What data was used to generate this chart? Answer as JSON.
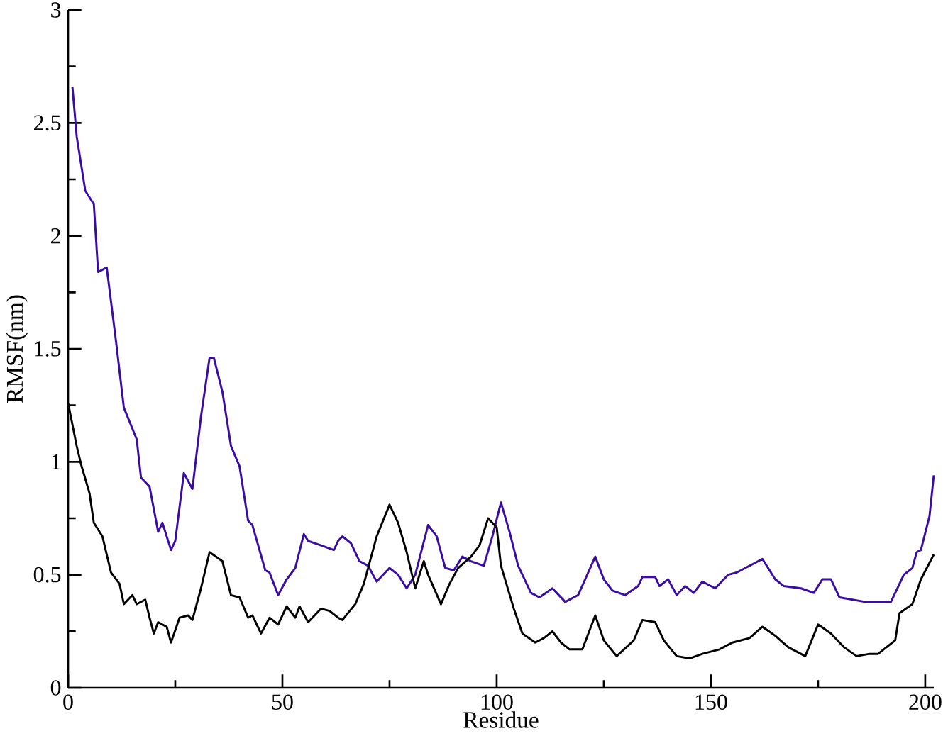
{
  "chart_data": {
    "type": "line",
    "xlabel": "Residue",
    "ylabel": "RMSF(nm)",
    "xlim": [
      0,
      202
    ],
    "ylim": [
      0,
      3
    ],
    "xticks": [
      0,
      {
        "value": 25,
        "label": null
      },
      50,
      {
        "value": 75,
        "label": null
      },
      100,
      {
        "value": 125,
        "label": null
      },
      150,
      {
        "value": 175,
        "label": null
      },
      200
    ],
    "yticks": [
      0,
      {
        "value": 0.25,
        "label": null
      },
      0.5,
      {
        "value": 0.75,
        "label": null
      },
      1,
      {
        "value": 1.25,
        "label": null
      },
      1.5,
      {
        "value": 1.75,
        "label": null
      },
      2,
      {
        "value": 2.25,
        "label": null
      },
      2.5,
      {
        "value": 2.75,
        "label": null
      },
      3
    ],
    "grid": false,
    "marker": "none",
    "line_style": "solid",
    "series": [
      {
        "color": "#3a0ca3",
        "x": [
          1,
          2,
          4,
          6,
          7,
          9,
          11,
          13,
          16,
          17,
          19,
          21,
          22,
          24,
          25,
          27,
          29,
          31,
          33,
          34,
          36,
          38,
          40,
          42,
          43,
          46,
          47,
          49,
          51,
          53,
          55,
          56,
          59,
          62,
          63,
          64,
          66,
          68,
          70,
          72,
          75,
          77,
          79,
          81,
          84,
          86,
          88,
          90,
          92,
          94,
          97,
          99,
          101,
          103,
          105,
          108,
          110,
          113,
          116,
          119,
          123,
          125,
          127,
          130,
          133,
          134,
          137,
          138,
          140,
          142,
          144,
          146,
          148,
          151,
          154,
          156,
          160,
          162,
          165,
          167,
          171,
          174,
          176,
          178,
          180,
          183,
          186,
          189,
          192,
          195,
          197,
          198,
          199,
          201,
          202
        ],
        "values": [
          2.66,
          2.44,
          2.2,
          2.14,
          1.84,
          1.86,
          1.56,
          1.24,
          1.1,
          0.93,
          0.89,
          0.69,
          0.73,
          0.61,
          0.65,
          0.95,
          0.88,
          1.2,
          1.46,
          1.46,
          1.31,
          1.07,
          0.98,
          0.74,
          0.72,
          0.52,
          0.51,
          0.41,
          0.48,
          0.53,
          0.68,
          0.65,
          0.63,
          0.61,
          0.65,
          0.67,
          0.64,
          0.56,
          0.54,
          0.47,
          0.53,
          0.5,
          0.44,
          0.5,
          0.72,
          0.67,
          0.53,
          0.52,
          0.58,
          0.56,
          0.54,
          0.67,
          0.82,
          0.69,
          0.54,
          0.42,
          0.4,
          0.44,
          0.38,
          0.41,
          0.58,
          0.48,
          0.43,
          0.41,
          0.45,
          0.49,
          0.49,
          0.45,
          0.48,
          0.41,
          0.45,
          0.42,
          0.47,
          0.44,
          0.5,
          0.51,
          0.55,
          0.57,
          0.48,
          0.45,
          0.44,
          0.42,
          0.48,
          0.48,
          0.4,
          0.39,
          0.38,
          0.38,
          0.38,
          0.5,
          0.53,
          0.6,
          0.61,
          0.76,
          0.94
        ]
      },
      {
        "color": "#000000",
        "x": [
          0,
          2,
          3,
          5,
          6,
          8,
          10,
          12,
          13,
          15,
          16,
          18,
          19,
          20,
          21,
          23,
          24,
          26,
          28,
          29,
          31,
          33,
          36,
          38,
          40,
          42,
          43,
          45,
          47,
          49,
          51,
          53,
          54,
          56,
          59,
          61,
          63,
          64,
          67,
          69,
          71,
          72,
          75,
          77,
          79,
          81,
          83,
          84,
          87,
          89,
          91,
          94,
          96,
          98,
          100,
          101,
          104,
          106,
          109,
          111,
          113,
          115,
          117,
          120,
          123,
          125,
          128,
          132,
          134,
          137,
          139,
          142,
          145,
          148,
          152,
          155,
          159,
          162,
          165,
          168,
          172,
          175,
          178,
          181,
          184,
          187,
          189,
          193,
          194,
          197,
          199,
          202
        ],
        "values": [
          1.26,
          1.07,
          0.99,
          0.86,
          0.73,
          0.67,
          0.51,
          0.46,
          0.37,
          0.41,
          0.37,
          0.39,
          0.31,
          0.24,
          0.29,
          0.27,
          0.2,
          0.31,
          0.32,
          0.3,
          0.44,
          0.6,
          0.56,
          0.41,
          0.4,
          0.31,
          0.32,
          0.24,
          0.31,
          0.28,
          0.36,
          0.31,
          0.36,
          0.29,
          0.35,
          0.34,
          0.31,
          0.3,
          0.37,
          0.46,
          0.6,
          0.67,
          0.81,
          0.73,
          0.6,
          0.44,
          0.56,
          0.5,
          0.37,
          0.46,
          0.53,
          0.58,
          0.63,
          0.75,
          0.71,
          0.54,
          0.35,
          0.24,
          0.2,
          0.22,
          0.25,
          0.2,
          0.17,
          0.17,
          0.32,
          0.21,
          0.14,
          0.21,
          0.3,
          0.29,
          0.21,
          0.14,
          0.13,
          0.15,
          0.17,
          0.2,
          0.22,
          0.27,
          0.23,
          0.18,
          0.14,
          0.28,
          0.24,
          0.18,
          0.14,
          0.15,
          0.15,
          0.21,
          0.33,
          0.37,
          0.48,
          0.59
        ]
      }
    ]
  }
}
